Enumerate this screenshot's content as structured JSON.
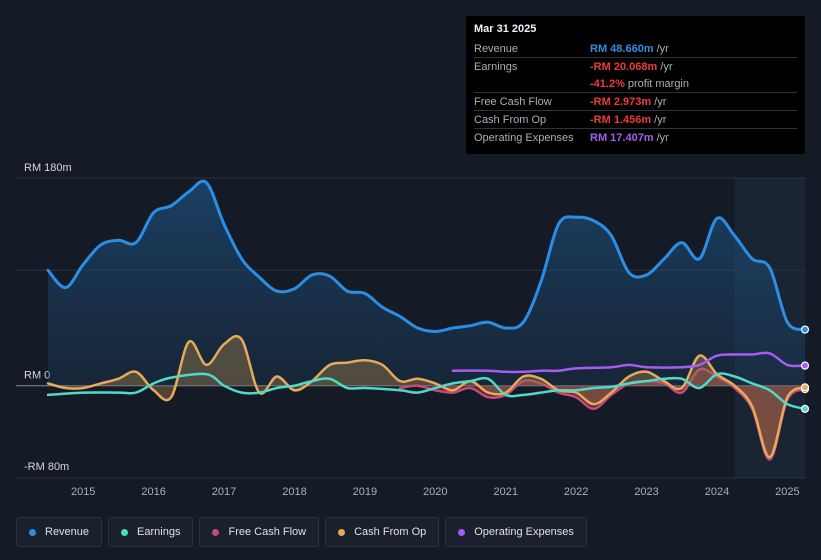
{
  "tooltip": {
    "date": "Mar 31 2025",
    "rows": [
      {
        "label": "Revenue",
        "value": "RM 48.660m",
        "unit": "/yr",
        "color": "#2b8ee6"
      },
      {
        "label": "Earnings",
        "value": "-RM 20.068m",
        "unit": "/yr",
        "color": "#ee3a3a"
      },
      {
        "label": "",
        "value": "-41.2%",
        "unit": "profit margin",
        "color": "#ee3a3a"
      },
      {
        "label": "Free Cash Flow",
        "value": "-RM 2.973m",
        "unit": "/yr",
        "color": "#ee3a3a"
      },
      {
        "label": "Cash From Op",
        "value": "-RM 1.456m",
        "unit": "/yr",
        "color": "#ee3a3a"
      },
      {
        "label": "Operating Expenses",
        "value": "RM 17.407m",
        "unit": "/yr",
        "color": "#a65cf2"
      }
    ]
  },
  "legend": [
    {
      "label": "Revenue",
      "color": "#2b8ee6"
    },
    {
      "label": "Earnings",
      "color": "#4fd9c8"
    },
    {
      "label": "Free Cash Flow",
      "color": "#c44a7e"
    },
    {
      "label": "Cash From Op",
      "color": "#e8a95a"
    },
    {
      "label": "Operating Expenses",
      "color": "#a65cf2"
    }
  ],
  "chart_data": {
    "type": "area",
    "y_tick_labels": [
      "RM 180m",
      "RM 0",
      "-RM 80m"
    ],
    "ylim": [
      -80,
      180
    ],
    "y_gridlines": [
      180,
      100,
      0,
      -80
    ],
    "xlim": [
      2014.5,
      2025.25
    ],
    "x_ticks": [
      2015,
      2016,
      2017,
      2018,
      2019,
      2020,
      2021,
      2022,
      2023,
      2024,
      2025
    ],
    "highlight_from": 2024.25,
    "series": [
      {
        "name": "Revenue",
        "color": "#2b8ee6",
        "fill": true,
        "points": [
          [
            2014.5,
            100
          ],
          [
            2014.75,
            85
          ],
          [
            2015.0,
            105
          ],
          [
            2015.25,
            122
          ],
          [
            2015.5,
            126
          ],
          [
            2015.75,
            124
          ],
          [
            2016.0,
            150
          ],
          [
            2016.25,
            156
          ],
          [
            2016.5,
            168
          ],
          [
            2016.75,
            176
          ],
          [
            2017.0,
            140
          ],
          [
            2017.25,
            110
          ],
          [
            2017.5,
            94
          ],
          [
            2017.75,
            82
          ],
          [
            2018.0,
            84
          ],
          [
            2018.25,
            96
          ],
          [
            2018.5,
            95
          ],
          [
            2018.75,
            82
          ],
          [
            2019.0,
            80
          ],
          [
            2019.25,
            68
          ],
          [
            2019.5,
            60
          ],
          [
            2019.75,
            50
          ],
          [
            2020.0,
            47
          ],
          [
            2020.25,
            50
          ],
          [
            2020.5,
            52
          ],
          [
            2020.75,
            55
          ],
          [
            2021.0,
            50
          ],
          [
            2021.25,
            55
          ],
          [
            2021.5,
            90
          ],
          [
            2021.75,
            140
          ],
          [
            2022.0,
            146
          ],
          [
            2022.25,
            143
          ],
          [
            2022.5,
            130
          ],
          [
            2022.75,
            98
          ],
          [
            2023.0,
            96
          ],
          [
            2023.25,
            110
          ],
          [
            2023.5,
            124
          ],
          [
            2023.75,
            110
          ],
          [
            2024.0,
            145
          ],
          [
            2024.25,
            130
          ],
          [
            2024.5,
            110
          ],
          [
            2024.75,
            102
          ],
          [
            2025.0,
            55
          ],
          [
            2025.25,
            48.66
          ]
        ]
      },
      {
        "name": "Earnings",
        "color": "#4fd9c8",
        "fill": false,
        "points": [
          [
            2014.5,
            -8
          ],
          [
            2015.0,
            -6
          ],
          [
            2015.5,
            -6
          ],
          [
            2015.75,
            -6
          ],
          [
            2016.0,
            2
          ],
          [
            2016.25,
            7
          ],
          [
            2016.75,
            10
          ],
          [
            2017.0,
            0
          ],
          [
            2017.25,
            -6
          ],
          [
            2017.5,
            -6
          ],
          [
            2017.75,
            -2
          ],
          [
            2018.0,
            0
          ],
          [
            2018.25,
            4
          ],
          [
            2018.5,
            6
          ],
          [
            2018.75,
            -2
          ],
          [
            2019.0,
            -2
          ],
          [
            2019.5,
            -4
          ],
          [
            2019.75,
            -6
          ],
          [
            2020.0,
            -2
          ],
          [
            2020.25,
            2
          ],
          [
            2020.5,
            4
          ],
          [
            2020.75,
            6
          ],
          [
            2021.0,
            -8
          ],
          [
            2021.25,
            -8
          ],
          [
            2021.5,
            -6
          ],
          [
            2021.75,
            -4
          ],
          [
            2022.0,
            -4
          ],
          [
            2022.25,
            -2
          ],
          [
            2022.5,
            -1
          ],
          [
            2022.75,
            2
          ],
          [
            2023.0,
            4
          ],
          [
            2023.25,
            6
          ],
          [
            2023.5,
            6
          ],
          [
            2023.75,
            -2
          ],
          [
            2024.0,
            10
          ],
          [
            2024.25,
            8
          ],
          [
            2024.5,
            2
          ],
          [
            2024.75,
            -4
          ],
          [
            2025.0,
            -16
          ],
          [
            2025.25,
            -20.07
          ]
        ]
      },
      {
        "name": "Free Cash Flow",
        "color": "#c44a7e",
        "fill": true,
        "points": [
          [
            2019.5,
            -2
          ],
          [
            2019.75,
            0
          ],
          [
            2020.0,
            -4
          ],
          [
            2020.25,
            -6
          ],
          [
            2020.5,
            -2
          ],
          [
            2020.75,
            -10
          ],
          [
            2021.0,
            -8
          ],
          [
            2021.25,
            4
          ],
          [
            2021.5,
            2
          ],
          [
            2021.75,
            -6
          ],
          [
            2022.0,
            -10
          ],
          [
            2022.25,
            -20
          ],
          [
            2022.5,
            -8
          ],
          [
            2022.75,
            2
          ],
          [
            2023.0,
            4
          ],
          [
            2023.25,
            2
          ],
          [
            2023.5,
            -6
          ],
          [
            2023.75,
            14
          ],
          [
            2024.0,
            8
          ],
          [
            2024.25,
            -2
          ],
          [
            2024.5,
            -20
          ],
          [
            2024.75,
            -64
          ],
          [
            2025.0,
            -12
          ],
          [
            2025.25,
            -2.97
          ]
        ]
      },
      {
        "name": "Cash From Op",
        "color": "#e8a95a",
        "fill": true,
        "points": [
          [
            2014.5,
            2
          ],
          [
            2014.75,
            -2
          ],
          [
            2015.0,
            -2
          ],
          [
            2015.25,
            2
          ],
          [
            2015.5,
            6
          ],
          [
            2015.75,
            12
          ],
          [
            2016.0,
            -4
          ],
          [
            2016.25,
            -10
          ],
          [
            2016.5,
            38
          ],
          [
            2016.75,
            18
          ],
          [
            2017.0,
            36
          ],
          [
            2017.25,
            40
          ],
          [
            2017.5,
            -6
          ],
          [
            2017.75,
            8
          ],
          [
            2018.0,
            -4
          ],
          [
            2018.25,
            4
          ],
          [
            2018.5,
            18
          ],
          [
            2018.75,
            20
          ],
          [
            2019.0,
            22
          ],
          [
            2019.25,
            18
          ],
          [
            2019.5,
            4
          ],
          [
            2019.75,
            6
          ],
          [
            2020.0,
            2
          ],
          [
            2020.25,
            -4
          ],
          [
            2020.5,
            4
          ],
          [
            2020.75,
            -6
          ],
          [
            2021.0,
            -6
          ],
          [
            2021.25,
            8
          ],
          [
            2021.5,
            6
          ],
          [
            2021.75,
            -4
          ],
          [
            2022.0,
            -6
          ],
          [
            2022.25,
            -16
          ],
          [
            2022.5,
            -6
          ],
          [
            2022.75,
            8
          ],
          [
            2023.0,
            12
          ],
          [
            2023.25,
            4
          ],
          [
            2023.5,
            -2
          ],
          [
            2023.75,
            26
          ],
          [
            2024.0,
            10
          ],
          [
            2024.25,
            0
          ],
          [
            2024.5,
            -18
          ],
          [
            2024.75,
            -62
          ],
          [
            2025.0,
            -10
          ],
          [
            2025.25,
            -1.46
          ]
        ]
      },
      {
        "name": "Operating Expenses",
        "color": "#a65cf2",
        "fill": false,
        "points": [
          [
            2020.25,
            13
          ],
          [
            2020.75,
            13
          ],
          [
            2021.0,
            12
          ],
          [
            2021.25,
            12
          ],
          [
            2021.5,
            13
          ],
          [
            2021.75,
            13
          ],
          [
            2022.0,
            15
          ],
          [
            2022.5,
            16
          ],
          [
            2022.75,
            18
          ],
          [
            2023.0,
            16
          ],
          [
            2023.5,
            16
          ],
          [
            2023.75,
            18
          ],
          [
            2024.0,
            26
          ],
          [
            2024.25,
            27
          ],
          [
            2024.5,
            27
          ],
          [
            2024.75,
            28
          ],
          [
            2025.0,
            18
          ],
          [
            2025.25,
            17.41
          ]
        ]
      }
    ]
  }
}
